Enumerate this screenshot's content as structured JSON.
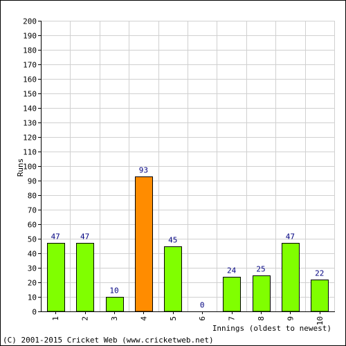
{
  "chart_data": {
    "type": "bar",
    "categories": [
      "1",
      "2",
      "3",
      "4",
      "5",
      "6",
      "7",
      "8",
      "9",
      "10"
    ],
    "values": [
      47,
      47,
      10,
      93,
      45,
      0,
      24,
      25,
      47,
      22
    ],
    "highlight_index": 3,
    "xlabel": "Innings (oldest to newest)",
    "ylabel": "Runs",
    "ylim": [
      0,
      200
    ],
    "y_ticks": [
      0,
      10,
      20,
      30,
      40,
      50,
      60,
      70,
      80,
      90,
      100,
      110,
      120,
      130,
      140,
      150,
      160,
      170,
      180,
      190,
      200
    ],
    "grid": true,
    "colors": {
      "bar": "#80ff00",
      "highlight": "#ff8c00",
      "grid": "#d0d0d0",
      "value_label": "#000080",
      "axis": "#000000"
    }
  },
  "footer": "(C) 2001-2015 Cricket Web (www.cricketweb.net)"
}
